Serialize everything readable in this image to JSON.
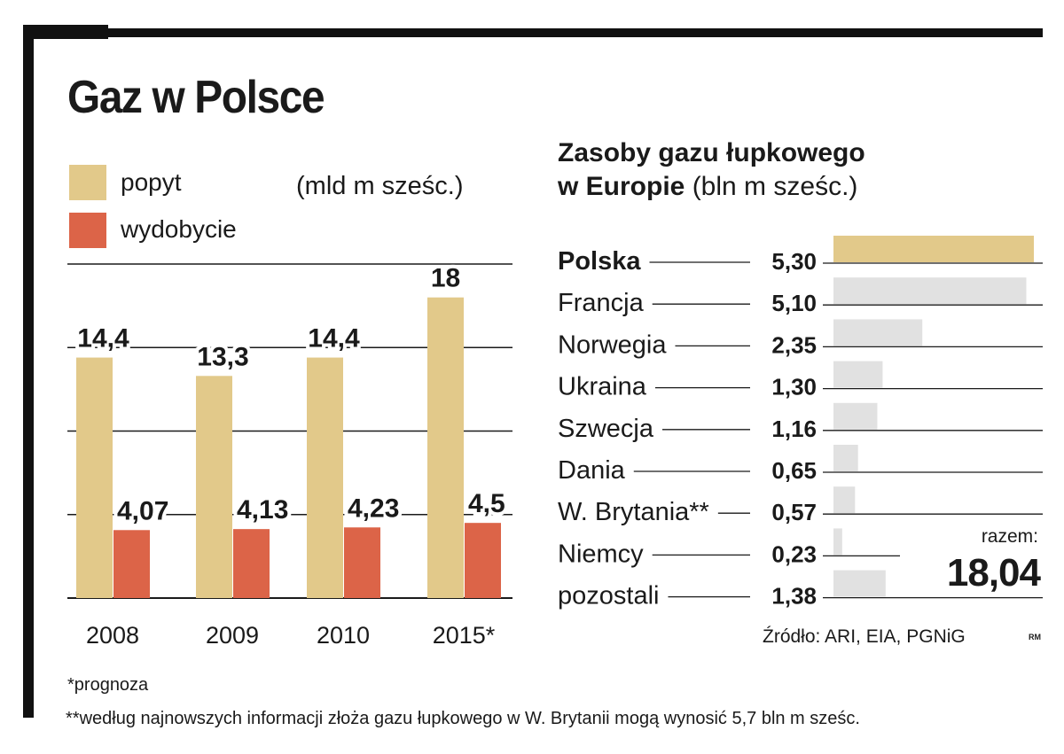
{
  "title": "Gaz w Polsce",
  "colors": {
    "demand": "#e2c98a",
    "production": "#dc6448",
    "highlight": "#e2c98a",
    "other": "#e1e1e1"
  },
  "legend": [
    {
      "label": "popyt",
      "color": "#e2c98a"
    },
    {
      "label": "wydobycie",
      "color": "#dc6448"
    }
  ],
  "unit_left": "(mld m sześc.)",
  "right_title": {
    "line1": "Zasoby gazu łupkowego",
    "line2_bold": "w Europie",
    "line2_unit": " (bln m sześc.)"
  },
  "total": {
    "label": "razem:",
    "value": "18,04"
  },
  "source": "Źródło: ARI, EIA, PGNiG",
  "credit": "RM",
  "footnote1": "*prognoza",
  "footnote2": "**według najnowszych informacji złoża gazu łupkowego w W. Brytanii mogą wynosić 5,7 bln m sześc.",
  "chart_data": [
    {
      "type": "bar",
      "categories": [
        "2008",
        "2009",
        "2010",
        "2015*"
      ],
      "series": [
        {
          "name": "popyt",
          "values": [
            14.4,
            13.3,
            14.4,
            18
          ],
          "labels": [
            "14,4",
            "13,3",
            "14,4",
            "18"
          ]
        },
        {
          "name": "wydobycie",
          "values": [
            4.07,
            4.13,
            4.23,
            4.5
          ],
          "labels": [
            "4,07",
            "4,13",
            "4,23",
            "4,5"
          ]
        }
      ],
      "ylim": [
        0,
        20
      ],
      "grid": true
    },
    {
      "type": "bar",
      "orientation": "horizontal",
      "title": "Zasoby gazu łupkowego w Europie (bln m sześc.)",
      "categories": [
        "Polska",
        "Francja",
        "Norwegia",
        "Ukraina",
        "Szwecja",
        "Dania",
        "W. Brytania**",
        "Niemcy",
        "pozostali"
      ],
      "values": [
        5.3,
        5.1,
        2.35,
        1.3,
        1.16,
        0.65,
        0.57,
        0.23,
        1.38
      ],
      "labels": [
        "5,30",
        "5,10",
        "2,35",
        "1,30",
        "1,16",
        "0,65",
        "0,57",
        "0,23",
        "1,38"
      ],
      "highlight": "Polska",
      "xlim": [
        0,
        5.3
      ]
    }
  ]
}
